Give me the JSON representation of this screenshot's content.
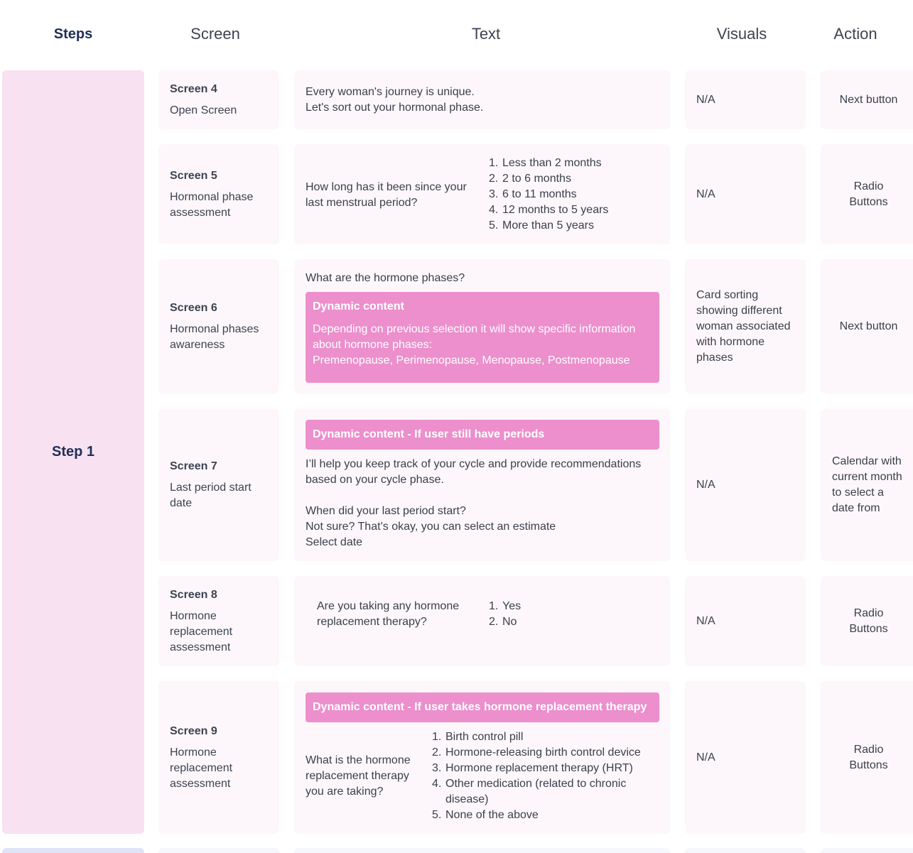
{
  "headers": {
    "steps": "Steps",
    "screen": "Screen",
    "text": "Text",
    "visuals": "Visuals",
    "action": "Action"
  },
  "step_label": "Step 1",
  "rows": [
    {
      "screen_title": "Screen 4",
      "screen_name": "Open Screen",
      "text_lines": [
        "Every woman's journey is unique.",
        "Let's sort out your hormonal phase."
      ],
      "visuals": "N/A",
      "action": "Next button"
    },
    {
      "screen_title": "Screen 5",
      "screen_name": "Hormonal phase assessment",
      "question": "How long has it been since your last menstrual period?",
      "options": [
        "Less than 2 months",
        "2 to 6 months",
        "6 to 11 months",
        "12 months to 5 years",
        "More than 5 years"
      ],
      "visuals": "N/A",
      "action": "Radio Buttons"
    },
    {
      "screen_title": "Screen 6",
      "screen_name": "Hormonal phases awareness",
      "question": "What are the hormone phases?",
      "dynamic_title": "Dynamic content",
      "dynamic_body": "Depending on previous selection it will show specific information about hormone phases:",
      "dynamic_list": "Premenopause, Perimenopause, Menopause, Postmenopause",
      "visuals": "Card sorting showing different woman associated with hormone phases",
      "action": "Next button"
    },
    {
      "screen_title": "Screen 7",
      "screen_name": "Last period start date",
      "dynamic_title": "Dynamic content - If user still have periods",
      "para1": "I’ll help you keep track of your cycle and provide recommendations based on your cycle phase.",
      "line1": "When did your last period start?",
      "line2": "Not sure? That’s okay, you can select an estimate",
      "line3": "Select date",
      "visuals": "N/A",
      "action": "Calendar with current month to select a date from"
    },
    {
      "screen_title": "Screen 8",
      "screen_name": "Hormone replacement assessment",
      "question": "Are you taking any hormone replacement therapy?",
      "options": [
        "Yes",
        "No"
      ],
      "visuals": "N/A",
      "action": "Radio Buttons"
    },
    {
      "screen_title": "Screen 9",
      "screen_name": "Hormone replacement assessment",
      "dynamic_title": "Dynamic content - If user takes hormone replacement therapy",
      "question": "What is the hormone replacement therapy you are taking?",
      "options": [
        "Birth control pill",
        "Hormone-releasing birth control device",
        "Hormone replacement therapy (HRT)",
        "Other medication (related to chronic disease)",
        "None of the above"
      ],
      "visuals": "N/A",
      "action": "Radio Buttons"
    }
  ]
}
